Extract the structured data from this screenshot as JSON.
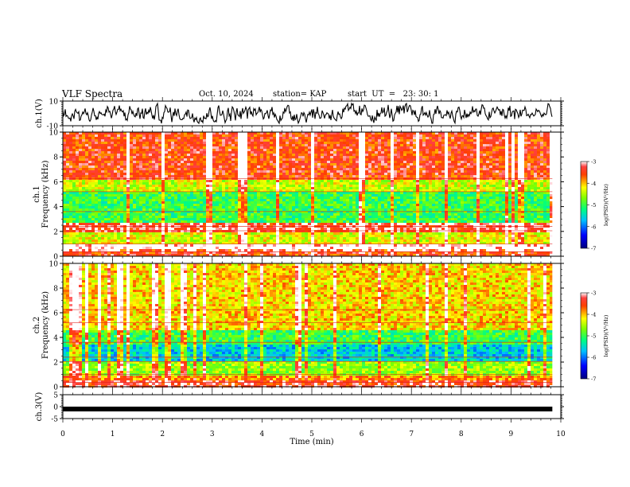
{
  "header": {
    "title": "VLF Spectra",
    "date": "Oct. 10, 2024",
    "station": "station= KAP",
    "start": "start  UT  =   23: 30: 1"
  },
  "chart_data": [
    {
      "type": "line",
      "panel": "ch1-waveform",
      "ylabel": "ch.1(V)",
      "ylim": [
        -10,
        10
      ],
      "yticks": [
        "10",
        "-10"
      ],
      "xlim": [
        0,
        10
      ],
      "line_color": "#000000",
      "level_note_value": 0
    },
    {
      "type": "heatmap",
      "panel": "ch1-spectrogram",
      "ylabel": "ch.1\nFrequency (kHz)",
      "ylabel_lines": [
        "ch.1",
        "Frequency (kHz)"
      ],
      "ylim": [
        0,
        10
      ],
      "yticks": [
        "0",
        "2",
        "4",
        "6",
        "8",
        "10"
      ],
      "xlim": [
        0,
        9.83
      ],
      "bands_khz": [
        {
          "from": 0.0,
          "to": 0.6,
          "log_psd": -3.5
        },
        {
          "from": 0.6,
          "to": 1.0,
          "log_psd": -2.9
        },
        {
          "from": 1.0,
          "to": 2.0,
          "log_psd": -4.3
        },
        {
          "from": 2.0,
          "to": 2.6,
          "log_psd": -3.3
        },
        {
          "from": 2.6,
          "to": 3.6,
          "log_psd": -5.0
        },
        {
          "from": 3.6,
          "to": 5.2,
          "log_psd": -5.0
        },
        {
          "from": 5.2,
          "to": 6.2,
          "log_psd": -4.4
        },
        {
          "from": 6.2,
          "to": 10.0,
          "log_psd": -3.5
        }
      ],
      "colorbar": {
        "label": "log(PSD)(V²/Hz)",
        "range": [
          -7,
          -3
        ],
        "ticks": [
          "-3",
          "-4",
          "-5",
          "-6",
          "-7"
        ]
      }
    },
    {
      "type": "heatmap",
      "panel": "ch2-spectrogram",
      "ylabel": "ch.2\nFrequency (kHz)",
      "ylabel_lines": [
        "ch.2",
        "Frequency (kHz)"
      ],
      "ylim": [
        0,
        10
      ],
      "yticks": [
        "0",
        "2",
        "4",
        "6",
        "8",
        "10"
      ],
      "xlim": [
        0,
        9.83
      ],
      "bands_khz": [
        {
          "from": 0.0,
          "to": 0.5,
          "log_psd": -3.4
        },
        {
          "from": 0.5,
          "to": 1.0,
          "log_psd": -3.8
        },
        {
          "from": 1.0,
          "to": 2.2,
          "log_psd": -4.6
        },
        {
          "from": 2.2,
          "to": 3.4,
          "log_psd": -5.6
        },
        {
          "from": 3.4,
          "to": 4.6,
          "log_psd": -5.0
        },
        {
          "from": 4.6,
          "to": 10.0,
          "log_psd": -4.1
        }
      ],
      "colorbar": {
        "label": "log(PSD)(V²/Hz)",
        "range": [
          -7,
          -3
        ],
        "ticks": [
          "-3",
          "-4",
          "-5",
          "-6",
          "-7"
        ]
      }
    },
    {
      "type": "line",
      "panel": "ch3-waveform",
      "ylabel": "ch.3(V)",
      "ylim": [
        -5,
        5
      ],
      "yticks": [
        "5",
        "0",
        "-5"
      ],
      "xlim": [
        0,
        10
      ],
      "level_value": -1
    }
  ],
  "xaxis": {
    "label": "Time (min)",
    "range": [
      0,
      10
    ],
    "ticks": [
      "0",
      "1",
      "2",
      "3",
      "4",
      "5",
      "6",
      "7",
      "8",
      "9",
      "10"
    ]
  }
}
